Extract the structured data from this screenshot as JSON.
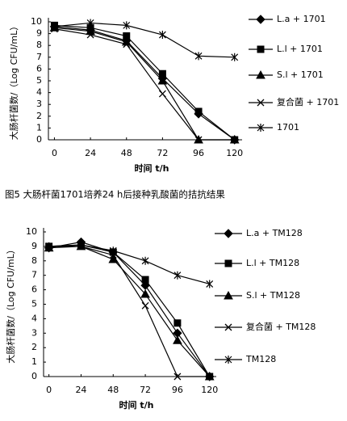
{
  "chart_data": [
    {
      "type": "line",
      "y_label": "大肠杆菌数/（Log CFU/mL）",
      "x_label": "时间 t/h",
      "x": [
        0,
        24,
        48,
        72,
        96,
        120
      ],
      "xlim": [
        -4,
        125
      ],
      "xticks": [
        0,
        24,
        48,
        72,
        96,
        120
      ],
      "ylim": [
        0,
        10
      ],
      "yticks": [
        0,
        1,
        2,
        3,
        4,
        5,
        6,
        7,
        8,
        9,
        10
      ],
      "series": [
        {
          "name": "L.a + 1701",
          "marker": "diamond",
          "color": "#000000",
          "values": [
            9.6,
            9.3,
            8.4,
            5.2,
            2.2,
            0
          ]
        },
        {
          "name": "L.l + 1701",
          "marker": "square",
          "color": "#000000",
          "values": [
            9.7,
            9.5,
            8.8,
            5.6,
            2.4,
            0
          ]
        },
        {
          "name": "S.l + 1701",
          "marker": "triangle",
          "color": "#000000",
          "values": [
            9.5,
            9.2,
            8.3,
            5.0,
            0,
            0
          ]
        },
        {
          "name": "复合菌 + 1701",
          "marker": "x",
          "color": "#000000",
          "values": [
            9.4,
            8.9,
            8.1,
            3.9,
            0,
            0
          ]
        },
        {
          "name": "1701",
          "marker": "star",
          "color": "#000000",
          "values": [
            9.6,
            9.9,
            9.7,
            8.9,
            7.1,
            7.0
          ]
        }
      ]
    },
    {
      "type": "line",
      "y_label": "大肠杆菌数/（Log CFU/mL）",
      "x_label": "时间 t/h",
      "x": [
        0,
        24,
        48,
        72,
        96,
        120
      ],
      "xlim": [
        -4,
        125
      ],
      "xticks": [
        0,
        24,
        48,
        72,
        96,
        120
      ],
      "ylim": [
        0,
        10
      ],
      "yticks": [
        0,
        1,
        2,
        3,
        4,
        5,
        6,
        7,
        8,
        9,
        10
      ],
      "series": [
        {
          "name": "L.a + TM128",
          "marker": "diamond",
          "color": "#000000",
          "values": [
            8.9,
            9.3,
            8.6,
            6.3,
            3.0,
            0
          ]
        },
        {
          "name": "L.l + TM128",
          "marker": "square",
          "color": "#000000",
          "values": [
            9.0,
            9.1,
            8.6,
            6.7,
            3.7,
            0
          ]
        },
        {
          "name": "S.l + TM128",
          "marker": "triangle",
          "color": "#000000",
          "values": [
            8.9,
            9.0,
            8.1,
            5.7,
            2.5,
            0
          ]
        },
        {
          "name": "复合菌 + TM128",
          "marker": "x",
          "color": "#000000",
          "values": [
            9.0,
            9.0,
            8.4,
            4.9,
            0,
            0
          ]
        },
        {
          "name": "TM128",
          "marker": "star",
          "color": "#000000",
          "values": [
            9.0,
            9.1,
            8.7,
            8.0,
            7.0,
            6.4
          ]
        }
      ]
    }
  ],
  "caption": "图5   大肠杆菌1701培养24 h后接种乳酸菌的拮抗结果"
}
